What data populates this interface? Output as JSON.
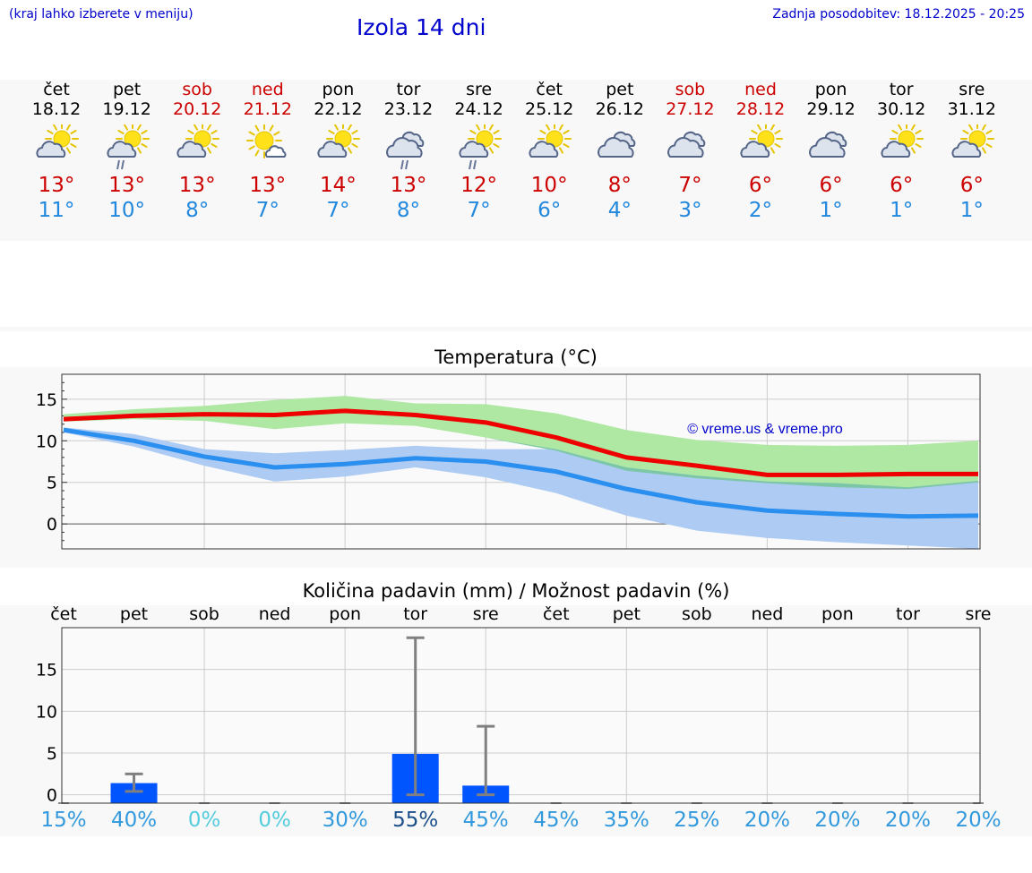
{
  "header": {
    "hint": "(kraj lahko izberete v meniju)",
    "title": "Izola 14 dni",
    "updated": "Zadnja posodobitev: 18.12.2025 - 20:25"
  },
  "days": [
    {
      "name": "čet",
      "date": "18.12",
      "weekend": false,
      "icon": "partly-cloudy-icon",
      "max": "13°",
      "min": "11°"
    },
    {
      "name": "pet",
      "date": "19.12",
      "weekend": false,
      "icon": "partly-cloudy-rain-icon",
      "max": "13°",
      "min": "10°"
    },
    {
      "name": "sob",
      "date": "20.12",
      "weekend": true,
      "icon": "partly-cloudy-icon",
      "max": "13°",
      "min": "8°"
    },
    {
      "name": "ned",
      "date": "21.12",
      "weekend": true,
      "icon": "sun-small-cloud-icon",
      "max": "13°",
      "min": "7°"
    },
    {
      "name": "pon",
      "date": "22.12",
      "weekend": false,
      "icon": "partly-cloudy-icon",
      "max": "14°",
      "min": "7°"
    },
    {
      "name": "tor",
      "date": "23.12",
      "weekend": false,
      "icon": "cloudy-rain-icon",
      "max": "13°",
      "min": "8°"
    },
    {
      "name": "sre",
      "date": "24.12",
      "weekend": false,
      "icon": "partly-cloudy-rain-icon",
      "max": "12°",
      "min": "7°"
    },
    {
      "name": "čet",
      "date": "25.12",
      "weekend": false,
      "icon": "partly-cloudy-icon",
      "max": "10°",
      "min": "6°"
    },
    {
      "name": "pet",
      "date": "26.12",
      "weekend": false,
      "icon": "cloudy-icon",
      "max": "8°",
      "min": "4°"
    },
    {
      "name": "sob",
      "date": "27.12",
      "weekend": true,
      "icon": "cloudy-icon",
      "max": "7°",
      "min": "3°"
    },
    {
      "name": "ned",
      "date": "28.12",
      "weekend": true,
      "icon": "partly-cloudy-icon",
      "max": "6°",
      "min": "2°"
    },
    {
      "name": "pon",
      "date": "29.12",
      "weekend": false,
      "icon": "cloudy-icon",
      "max": "6°",
      "min": "1°"
    },
    {
      "name": "tor",
      "date": "30.12",
      "weekend": false,
      "icon": "partly-cloudy-icon",
      "max": "6°",
      "min": "1°"
    },
    {
      "name": "sre",
      "date": "31.12",
      "weekend": false,
      "icon": "partly-cloudy-icon",
      "max": "6°",
      "min": "1°"
    }
  ],
  "colors": {
    "max_line": "#ee0000",
    "min_line": "#2b8ff0",
    "max_band": "#aee8a2",
    "min_band": "#aecbf3",
    "overlap_band": "#7cc6a8",
    "bar": "#0055ff",
    "whisker": "#808080",
    "pct_low": "#55ccdd",
    "pct_mid": "#3399dd",
    "pct_high": "#1a4f8a"
  },
  "chart_data": [
    {
      "type": "line",
      "title": "Temperatura (°C)",
      "watermark": "© vreme.us & vreme.pro",
      "x_index": [
        0,
        1,
        2,
        3,
        4,
        5,
        6,
        7,
        8,
        9,
        10,
        11,
        12,
        13
      ],
      "ylim": [
        -3,
        18
      ],
      "yticks": [
        "15",
        "10",
        "5",
        "0"
      ],
      "ytick_values": [
        15,
        10,
        5,
        0
      ],
      "series": [
        {
          "name": "max",
          "values": [
            12.6,
            13.0,
            13.2,
            13.1,
            13.6,
            13.1,
            12.2,
            10.4,
            8.0,
            7.0,
            5.9,
            5.9,
            6.0,
            6.0
          ],
          "band_low": [
            12.3,
            12.6,
            12.4,
            11.4,
            12.1,
            11.8,
            10.4,
            8.8,
            6.4,
            5.5,
            4.9,
            4.4,
            4.2,
            5.0
          ],
          "band_high": [
            13.2,
            13.8,
            14.2,
            14.9,
            15.4,
            14.5,
            14.4,
            13.3,
            11.3,
            10.1,
            9.5,
            9.4,
            9.5,
            10.0
          ]
        },
        {
          "name": "min",
          "values": [
            11.3,
            10.0,
            8.1,
            6.8,
            7.2,
            7.9,
            7.5,
            6.3,
            4.2,
            2.6,
            1.6,
            1.2,
            0.9,
            1.0
          ],
          "band_low": [
            11.0,
            9.3,
            7.0,
            5.1,
            5.7,
            6.8,
            5.6,
            3.7,
            1.0,
            -0.8,
            -1.7,
            -2.2,
            -2.6,
            -3.0
          ],
          "band_high": [
            11.6,
            10.8,
            9.0,
            8.5,
            8.9,
            9.4,
            9.0,
            9.0,
            6.8,
            5.8,
            5.1,
            4.9,
            4.4,
            5.2
          ]
        }
      ]
    },
    {
      "type": "bar",
      "title": "Količina padavin (mm) / Možnost padavin (%)",
      "categories": [
        "čet",
        "pet",
        "sob",
        "ned",
        "pon",
        "tor",
        "sre",
        "čet",
        "pet",
        "sob",
        "ned",
        "pon",
        "tor",
        "sre"
      ],
      "ylim": [
        -1,
        20
      ],
      "yticks": [
        "15",
        "10",
        "5",
        "0"
      ],
      "ytick_values": [
        15,
        10,
        5,
        0
      ],
      "values": [
        0,
        1.4,
        0,
        0,
        0,
        4.9,
        1.1,
        0,
        0,
        0,
        0,
        0,
        0,
        0
      ],
      "err_low": [
        0,
        0.4,
        0,
        0,
        0,
        0,
        0,
        0,
        0,
        0,
        0,
        0,
        0,
        0
      ],
      "err_high": [
        0,
        2.5,
        0,
        0,
        0,
        18.8,
        8.2,
        0,
        0,
        0,
        0,
        0,
        0,
        0
      ],
      "percent": [
        "15%",
        "40%",
        "0%",
        "0%",
        "30%",
        "55%",
        "45%",
        "45%",
        "35%",
        "25%",
        "20%",
        "20%",
        "20%",
        "20%"
      ],
      "percent_values": [
        15,
        40,
        0,
        0,
        30,
        55,
        45,
        45,
        35,
        25,
        20,
        20,
        20,
        20
      ]
    }
  ]
}
